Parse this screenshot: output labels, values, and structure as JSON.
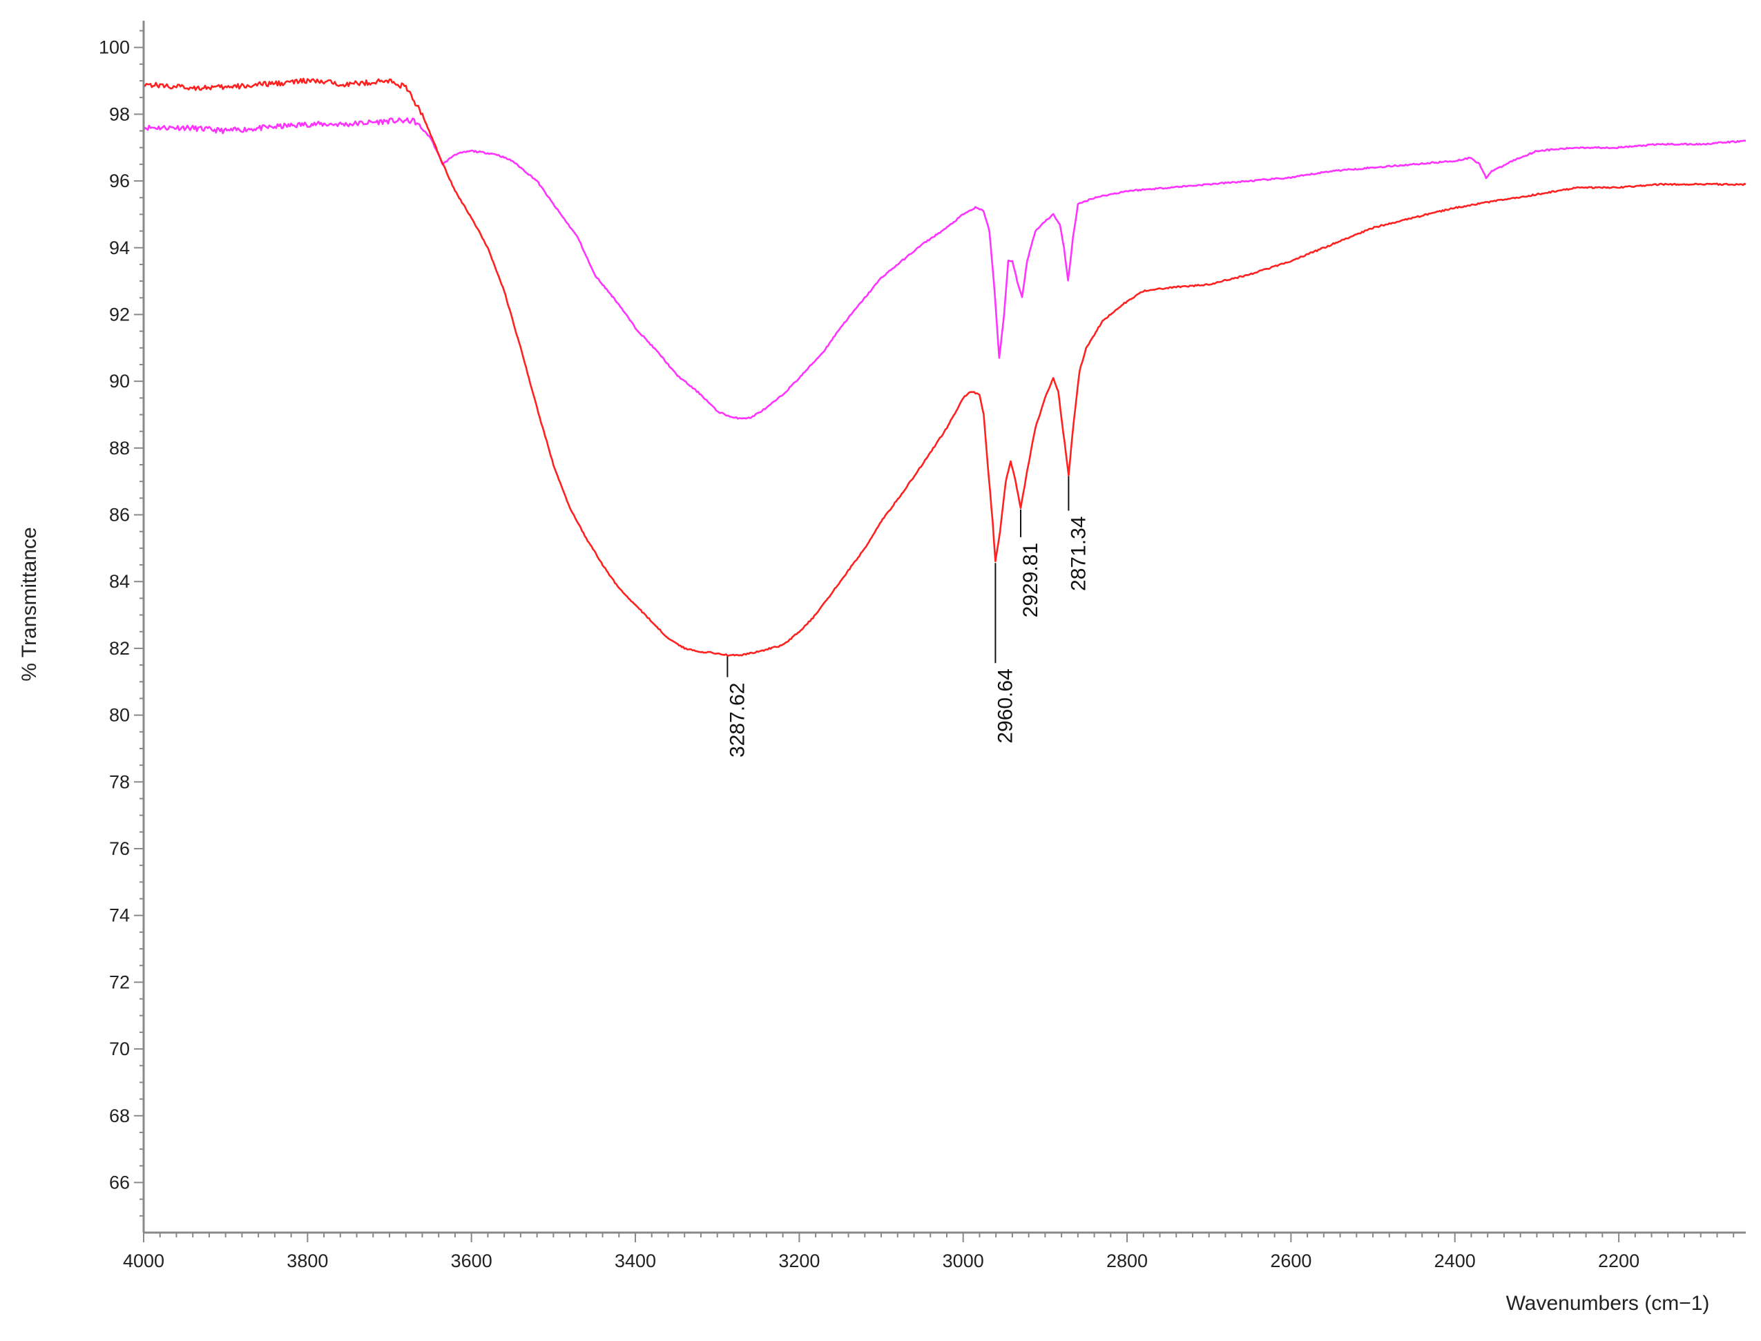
{
  "chart_data": {
    "type": "line",
    "xlabel": "Wavenumbers (cm−1)",
    "ylabel": "% Transmittance",
    "xlim": [
      4000,
      2045
    ],
    "ylim": [
      64.5,
      100.8
    ],
    "x_reversed": true,
    "xticks": [
      "4000",
      "3800",
      "3600",
      "3400",
      "3200",
      "3000",
      "2800",
      "2600",
      "2400",
      "2200"
    ],
    "yticks": [
      "100",
      "98",
      "96",
      "94",
      "92",
      "90",
      "88",
      "86",
      "84",
      "82",
      "80",
      "78",
      "76",
      "74",
      "72",
      "70",
      "68",
      "66"
    ],
    "grid": false,
    "series": [
      {
        "color": "#ff33ff",
        "points": [
          [
            4000,
            97.6
          ],
          [
            3950,
            97.6
          ],
          [
            3900,
            97.5
          ],
          [
            3850,
            97.6
          ],
          [
            3800,
            97.7
          ],
          [
            3750,
            97.7
          ],
          [
            3700,
            97.8
          ],
          [
            3670,
            97.8
          ],
          [
            3650,
            97.3
          ],
          [
            3635,
            96.5
          ],
          [
            3620,
            96.8
          ],
          [
            3600,
            96.9
          ],
          [
            3570,
            96.8
          ],
          [
            3550,
            96.6
          ],
          [
            3520,
            96.0
          ],
          [
            3500,
            95.3
          ],
          [
            3470,
            94.3
          ],
          [
            3450,
            93.2
          ],
          [
            3420,
            92.3
          ],
          [
            3400,
            91.6
          ],
          [
            3370,
            90.8
          ],
          [
            3350,
            90.2
          ],
          [
            3320,
            89.6
          ],
          [
            3300,
            89.1
          ],
          [
            3280,
            88.9
          ],
          [
            3260,
            88.9
          ],
          [
            3240,
            89.2
          ],
          [
            3220,
            89.6
          ],
          [
            3200,
            90.1
          ],
          [
            3170,
            90.9
          ],
          [
            3150,
            91.6
          ],
          [
            3120,
            92.5
          ],
          [
            3100,
            93.1
          ],
          [
            3070,
            93.7
          ],
          [
            3050,
            94.1
          ],
          [
            3020,
            94.6
          ],
          [
            3000,
            95.0
          ],
          [
            2985,
            95.2
          ],
          [
            2975,
            95.1
          ],
          [
            2968,
            94.5
          ],
          [
            2962,
            92.8
          ],
          [
            2956,
            90.7
          ],
          [
            2950,
            92.0
          ],
          [
            2945,
            93.6
          ],
          [
            2940,
            93.6
          ],
          [
            2934,
            93.0
          ],
          [
            2928,
            92.5
          ],
          [
            2922,
            93.6
          ],
          [
            2912,
            94.5
          ],
          [
            2900,
            94.8
          ],
          [
            2890,
            95.0
          ],
          [
            2882,
            94.7
          ],
          [
            2877,
            94.0
          ],
          [
            2872,
            93.0
          ],
          [
            2866,
            94.3
          ],
          [
            2860,
            95.3
          ],
          [
            2840,
            95.5
          ],
          [
            2800,
            95.7
          ],
          [
            2750,
            95.8
          ],
          [
            2700,
            95.9
          ],
          [
            2650,
            96.0
          ],
          [
            2600,
            96.1
          ],
          [
            2550,
            96.3
          ],
          [
            2500,
            96.4
          ],
          [
            2450,
            96.5
          ],
          [
            2400,
            96.6
          ],
          [
            2380,
            96.7
          ],
          [
            2370,
            96.5
          ],
          [
            2362,
            96.1
          ],
          [
            2355,
            96.3
          ],
          [
            2345,
            96.4
          ],
          [
            2330,
            96.6
          ],
          [
            2300,
            96.9
          ],
          [
            2250,
            97.0
          ],
          [
            2200,
            97.0
          ],
          [
            2150,
            97.1
          ],
          [
            2100,
            97.1
          ],
          [
            2045,
            97.2
          ]
        ]
      },
      {
        "color": "#ff2020",
        "points": [
          [
            4000,
            98.9
          ],
          [
            3950,
            98.8
          ],
          [
            3900,
            98.8
          ],
          [
            3850,
            98.9
          ],
          [
            3800,
            99.0
          ],
          [
            3750,
            98.9
          ],
          [
            3700,
            99.0
          ],
          [
            3680,
            98.8
          ],
          [
            3660,
            98.0
          ],
          [
            3640,
            96.8
          ],
          [
            3620,
            95.7
          ],
          [
            3600,
            94.9
          ],
          [
            3580,
            94.0
          ],
          [
            3560,
            92.7
          ],
          [
            3540,
            91.0
          ],
          [
            3520,
            89.2
          ],
          [
            3500,
            87.5
          ],
          [
            3480,
            86.2
          ],
          [
            3460,
            85.3
          ],
          [
            3440,
            84.5
          ],
          [
            3420,
            83.8
          ],
          [
            3400,
            83.3
          ],
          [
            3380,
            82.8
          ],
          [
            3360,
            82.3
          ],
          [
            3340,
            82.0
          ],
          [
            3320,
            81.9
          ],
          [
            3300,
            81.85
          ],
          [
            3287.62,
            81.8
          ],
          [
            3270,
            81.8
          ],
          [
            3250,
            81.9
          ],
          [
            3220,
            82.1
          ],
          [
            3200,
            82.5
          ],
          [
            3180,
            83.0
          ],
          [
            3150,
            84.0
          ],
          [
            3120,
            85.0
          ],
          [
            3100,
            85.8
          ],
          [
            3070,
            86.8
          ],
          [
            3050,
            87.5
          ],
          [
            3020,
            88.6
          ],
          [
            3000,
            89.5
          ],
          [
            2990,
            89.7
          ],
          [
            2980,
            89.6
          ],
          [
            2975,
            89.0
          ],
          [
            2970,
            87.5
          ],
          [
            2964,
            85.8
          ],
          [
            2960.64,
            84.6
          ],
          [
            2955,
            85.5
          ],
          [
            2948,
            87.0
          ],
          [
            2942,
            87.6
          ],
          [
            2936,
            87.0
          ],
          [
            2929.81,
            86.2
          ],
          [
            2922,
            87.3
          ],
          [
            2912,
            88.6
          ],
          [
            2900,
            89.5
          ],
          [
            2890,
            90.1
          ],
          [
            2884,
            89.7
          ],
          [
            2878,
            88.5
          ],
          [
            2871.34,
            87.2
          ],
          [
            2865,
            88.8
          ],
          [
            2858,
            90.3
          ],
          [
            2850,
            91.0
          ],
          [
            2830,
            91.8
          ],
          [
            2800,
            92.4
          ],
          [
            2780,
            92.7
          ],
          [
            2750,
            92.8
          ],
          [
            2700,
            92.9
          ],
          [
            2650,
            93.2
          ],
          [
            2600,
            93.6
          ],
          [
            2550,
            94.1
          ],
          [
            2500,
            94.6
          ],
          [
            2450,
            94.9
          ],
          [
            2400,
            95.2
          ],
          [
            2350,
            95.4
          ],
          [
            2300,
            95.6
          ],
          [
            2250,
            95.8
          ],
          [
            2200,
            95.8
          ],
          [
            2150,
            95.9
          ],
          [
            2100,
            95.9
          ],
          [
            2045,
            95.9
          ]
        ]
      }
    ],
    "annotations": [
      {
        "label": "3287.62",
        "x": 3287.62,
        "y": 81.8
      },
      {
        "label": "2960.64",
        "x": 2960.64,
        "y": 84.6
      },
      {
        "label": "2929.81",
        "x": 2929.81,
        "y": 86.2
      },
      {
        "label": "2871.34",
        "x": 2871.34,
        "y": 87.2
      }
    ]
  }
}
